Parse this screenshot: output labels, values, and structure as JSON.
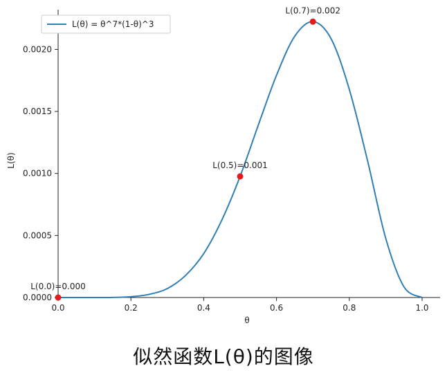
{
  "caption": "似然函数L(θ)的图像",
  "chart_data": {
    "type": "line",
    "xlabel": "θ",
    "ylabel": "L(θ)",
    "xlim": [
      0.0,
      1.0
    ],
    "ylim": [
      0.0,
      0.00232
    ],
    "grid": false,
    "legend": "top-left",
    "x_ticks": [
      {
        "value": 0.0,
        "label": "0.0"
      },
      {
        "value": 0.2,
        "label": "0.2"
      },
      {
        "value": 0.4,
        "label": "0.4"
      },
      {
        "value": 0.6,
        "label": "0.6"
      },
      {
        "value": 0.8,
        "label": "0.8"
      },
      {
        "value": 1.0,
        "label": "1.0"
      }
    ],
    "y_ticks": [
      {
        "value": 0.0,
        "label": "0.0000"
      },
      {
        "value": 0.0005,
        "label": "0.0005"
      },
      {
        "value": 0.001,
        "label": "0.0010"
      },
      {
        "value": 0.0015,
        "label": "0.0015"
      },
      {
        "value": 0.002,
        "label": "0.0020"
      }
    ],
    "series": [
      {
        "name": "L(θ) = θ^7*(1-θ)^3",
        "color": "#2f7fb5",
        "x": [
          0.0,
          0.05,
          0.1,
          0.15,
          0.2,
          0.25,
          0.3,
          0.35,
          0.4,
          0.45,
          0.5,
          0.55,
          0.6,
          0.65,
          0.7,
          0.75,
          0.8,
          0.85,
          0.9,
          0.95,
          1.0
        ],
        "y": [
          0.0,
          7e-10,
          7.29e-08,
          1.0384e-06,
          6.5536e-06,
          2.55e-05,
          7.2e-05,
          0.0001775,
          0.0003539,
          0.0006258,
          0.0009766,
          0.0013898,
          0.0017916,
          0.0021054,
          0.0022236,
          0.0020857,
          0.0016777,
          0.0011048,
          0.0004783,
          8.73e-05,
          0.0
        ]
      }
    ],
    "points": [
      {
        "x": 0.0,
        "y": 0.0,
        "label": "L(0.0)=0.000"
      },
      {
        "x": 0.5,
        "y": 0.0009766,
        "label": "L(0.5)=0.001"
      },
      {
        "x": 0.7,
        "y": 0.0022236,
        "label": "L(0.7)=0.002"
      }
    ],
    "point_color": "#e41a1c"
  }
}
